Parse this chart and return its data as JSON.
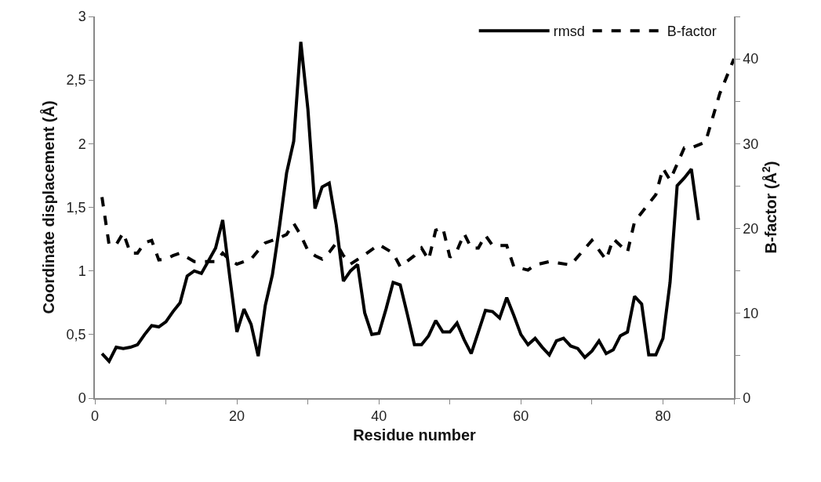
{
  "chart_data": {
    "type": "line",
    "xlabel": "Residue number",
    "ylabel": "Coordinate displacement (Å)",
    "y2label": "B-factor (Å$^{2}$)",
    "xlim": [
      0,
      90
    ],
    "xticks": [
      0,
      {
        "value": 10,
        "label": null
      },
      20,
      {
        "value": 30,
        "label": null
      },
      40,
      {
        "value": 50,
        "label": null
      },
      60,
      {
        "value": 70,
        "label": null
      },
      80,
      {
        "value": 90,
        "label": null
      }
    ],
    "ylim": [
      0,
      3
    ],
    "yticks": [
      0,
      {
        "value": 0.5,
        "label": "0,5"
      },
      1,
      {
        "value": 1.5,
        "label": "1,5"
      },
      2,
      {
        "value": 2.5,
        "label": "2,5"
      },
      3
    ],
    "y2lim": [
      0,
      45
    ],
    "y2ticks": [
      0,
      {
        "value": 5,
        "label": null
      },
      10,
      {
        "value": 15,
        "label": null
      },
      20,
      {
        "value": 25,
        "label": null
      },
      30,
      {
        "value": 35,
        "label": null
      },
      40,
      {
        "value": 45,
        "label": null
      }
    ],
    "legend": "top right",
    "series": [
      {
        "name": "rmsd",
        "color": "#000000",
        "line_style": "solid",
        "x": [
          1,
          2,
          3,
          4,
          5,
          6,
          7,
          8,
          9,
          10,
          11,
          12,
          13,
          14,
          15,
          16,
          17,
          18,
          19,
          20,
          21,
          22,
          23,
          24,
          25,
          26,
          27,
          28,
          29,
          30,
          31,
          32,
          33,
          34,
          35,
          36,
          37,
          38,
          39,
          40,
          41,
          42,
          43,
          44,
          45,
          46,
          47,
          48,
          49,
          50,
          51,
          52,
          53,
          54,
          55,
          56,
          57,
          58,
          59,
          60,
          61,
          62,
          63,
          64,
          65,
          66,
          67,
          68,
          69,
          70,
          71,
          72,
          73,
          74,
          75,
          76,
          77,
          78,
          79,
          80,
          81,
          82,
          83,
          84,
          85
        ],
        "values": [
          0.35,
          0.29,
          0.4,
          0.39,
          0.4,
          0.42,
          0.5,
          0.57,
          0.56,
          0.6,
          0.68,
          0.75,
          0.96,
          1.0,
          0.98,
          1.08,
          1.18,
          1.4,
          0.95,
          0.52,
          0.7,
          0.58,
          0.33,
          0.73,
          0.97,
          1.35,
          1.77,
          2.02,
          2.8,
          2.27,
          1.49,
          1.66,
          1.69,
          1.36,
          0.92,
          1.0,
          1.05,
          0.67,
          0.5,
          0.51,
          0.7,
          0.91,
          0.89,
          0.66,
          0.42,
          0.42,
          0.49,
          0.61,
          0.52,
          0.52,
          0.59,
          0.46,
          0.35,
          0.52,
          0.69,
          0.68,
          0.63,
          0.79,
          0.65,
          0.5,
          0.42,
          0.47,
          0.4,
          0.34,
          0.45,
          0.47,
          0.41,
          0.39,
          0.32,
          0.37,
          0.45,
          0.35,
          0.38,
          0.49,
          0.52,
          0.8,
          0.74,
          0.34,
          0.34,
          0.47,
          0.91,
          1.67,
          1.73,
          1.8,
          1.4
        ]
      },
      {
        "name": "B-factor",
        "color": "#000000",
        "line_style": "dashed",
        "axis": "y2",
        "x": [
          1,
          2,
          3,
          4,
          5,
          6,
          7,
          8,
          9,
          10,
          11,
          12,
          13,
          14,
          16,
          17,
          18,
          19,
          20,
          22,
          23,
          24,
          26,
          27,
          28,
          29,
          30,
          31,
          32,
          33,
          34,
          35,
          36,
          38,
          40,
          42,
          43,
          45,
          46,
          47,
          48,
          49,
          50,
          51,
          52,
          53,
          54,
          55,
          56,
          58,
          59,
          61,
          62,
          64,
          67,
          70,
          72,
          73,
          75,
          76,
          79,
          80,
          81,
          83,
          84,
          86,
          88,
          90
        ],
        "values": [
          23.7,
          18.1,
          18.1,
          19.5,
          17.1,
          17.1,
          18.3,
          18.6,
          16.3,
          16.4,
          16.8,
          17.1,
          16.6,
          16.1,
          16.1,
          16.1,
          17.1,
          16.3,
          15.8,
          16.4,
          17.4,
          18.3,
          18.9,
          19.3,
          20.6,
          19.2,
          17.4,
          16.8,
          16.4,
          17.2,
          18.3,
          16.8,
          15.8,
          16.9,
          18.1,
          17.1,
          15.5,
          16.8,
          17.7,
          16.3,
          19.8,
          20.1,
          16.6,
          17.4,
          19.4,
          17.7,
          17.7,
          19.2,
          18.0,
          18.0,
          15.5,
          15.1,
          15.7,
          16.1,
          15.7,
          18.6,
          16.3,
          18.8,
          17.2,
          20.8,
          24.0,
          27.1,
          25.7,
          29.5,
          29.5,
          30.2,
          35.9,
          40.0
        ]
      }
    ]
  }
}
